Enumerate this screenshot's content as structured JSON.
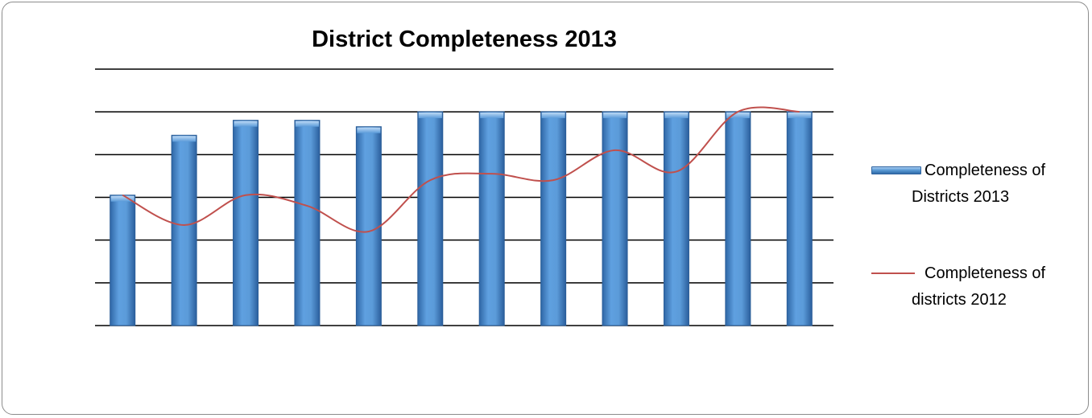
{
  "chart_data": {
    "type": "bar",
    "title": "District Completeness 2013",
    "categories": [
      "",
      "",
      "",
      "",
      "",
      "",
      "",
      "",
      "",
      "",
      "",
      ""
    ],
    "ylim": [
      0,
      100
    ],
    "grid": true,
    "legend_position": "right",
    "series": [
      {
        "name": "Completeness of Districts 2013",
        "type": "bar",
        "color": "#4f8fd6",
        "values": [
          61,
          89,
          96,
          96,
          93,
          100,
          100,
          100,
          100,
          100,
          100,
          100
        ]
      },
      {
        "name": "Completeness of districts 2012",
        "type": "line",
        "color": "#c0504d",
        "values": [
          61,
          47,
          61,
          56,
          44,
          68,
          71,
          68,
          82,
          72,
          100,
          100
        ]
      }
    ]
  },
  "legend": {
    "bar_label_line1": "Completeness of",
    "bar_label_line2": "Districts 2013",
    "line_label_line1": "Completeness of",
    "line_label_line2": "districts 2012"
  }
}
